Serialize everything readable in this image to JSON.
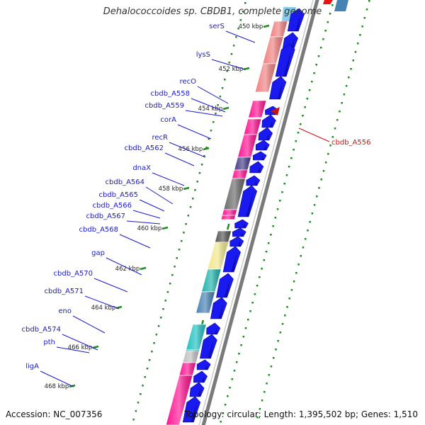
{
  "title": "Dehalococcoides sp. CBDB1, complete genome",
  "accession": "Accession: NC_007356",
  "topology": "Topology: circular; Length: 1,395,502 bp; Genes: 1,510",
  "colors": {
    "feature_label": "#1a1acc",
    "highlight_label": "#cc1111",
    "cds_arrow": "#1a1af0",
    "backbone": "#888888",
    "tick_green": "#1e8c1e"
  },
  "ticks": [
    "450 kbp",
    "452 kbp",
    "454 kbp",
    "456 kbp",
    "458 kbp",
    "460 kbp",
    "462 kbp",
    "464 kbp",
    "466 kbp",
    "468 kbp"
  ],
  "features": [
    {
      "name": "serS",
      "color": "#f08080"
    },
    {
      "name": "lysS",
      "color": "#f08080"
    },
    {
      "name": "recO",
      "color": "#ff1493"
    },
    {
      "name": "cbdb_A558",
      "color": "#ff1493"
    },
    {
      "name": "cbdb_A559",
      "color": "#ff1493"
    },
    {
      "name": "corA",
      "color": "#483d8b"
    },
    {
      "name": "recR",
      "color": "#ff1493"
    },
    {
      "name": "cbdb_A562",
      "color": "#696969"
    },
    {
      "name": "dnaX",
      "color": "#ff1493"
    },
    {
      "name": "cbdb_A564",
      "color": "#ff1493"
    },
    {
      "name": "cbdb_A565",
      "color": ""
    },
    {
      "name": "cbdb_A566",
      "color": ""
    },
    {
      "name": "cbdb_A567",
      "color": ""
    },
    {
      "name": "cbdb_A568",
      "color": "#555555"
    },
    {
      "name": "gap",
      "color": "#f0e68c"
    },
    {
      "name": "cbdb_A570",
      "color": "#20b2aa"
    },
    {
      "name": "cbdb_A571",
      "color": "#4682b4"
    },
    {
      "name": "eno",
      "color": "#20c0c0"
    },
    {
      "name": "cbdb_A574",
      "color": "#20c0c0"
    },
    {
      "name": "pth",
      "color": "#c0c0c0"
    },
    {
      "name": "ligA",
      "color": "#ff1493"
    }
  ],
  "highlight": {
    "name": "cbdb_A556"
  }
}
